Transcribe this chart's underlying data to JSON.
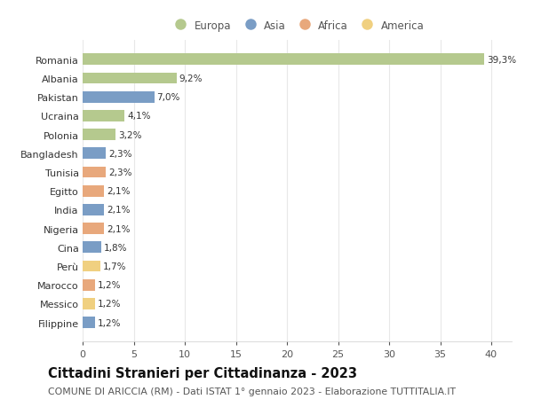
{
  "countries": [
    "Romania",
    "Albania",
    "Pakistan",
    "Ucraina",
    "Polonia",
    "Bangladesh",
    "Tunisia",
    "Egitto",
    "India",
    "Nigeria",
    "Cina",
    "Perù",
    "Marocco",
    "Messico",
    "Filippine"
  ],
  "values": [
    39.3,
    9.2,
    7.0,
    4.1,
    3.2,
    2.3,
    2.3,
    2.1,
    2.1,
    2.1,
    1.8,
    1.7,
    1.2,
    1.2,
    1.2
  ],
  "labels": [
    "39,3%",
    "9,2%",
    "7,0%",
    "4,1%",
    "3,2%",
    "2,3%",
    "2,3%",
    "2,1%",
    "2,1%",
    "2,1%",
    "1,8%",
    "1,7%",
    "1,2%",
    "1,2%",
    "1,2%"
  ],
  "continents": [
    "Europa",
    "Europa",
    "Asia",
    "Europa",
    "Europa",
    "Asia",
    "Africa",
    "Africa",
    "Asia",
    "Africa",
    "Asia",
    "America",
    "Africa",
    "America",
    "Asia"
  ],
  "colors": {
    "Europa": "#b5c98e",
    "Asia": "#7a9dc5",
    "Africa": "#e8a87c",
    "America": "#f0d080"
  },
  "xlim": [
    0,
    42
  ],
  "xticks": [
    0,
    5,
    10,
    15,
    20,
    25,
    30,
    35,
    40
  ],
  "title": "Cittadini Stranieri per Cittadinanza - 2023",
  "subtitle": "COMUNE DI ARICCIA (RM) - Dati ISTAT 1° gennaio 2023 - Elaborazione TUTTITALIA.IT",
  "background_color": "#ffffff",
  "grid_color": "#e8e8e8",
  "bar_height": 0.6,
  "label_fontsize": 7.5,
  "ytick_fontsize": 8.0,
  "xtick_fontsize": 8.0,
  "title_fontsize": 10.5,
  "subtitle_fontsize": 7.8,
  "legend_fontsize": 8.5
}
